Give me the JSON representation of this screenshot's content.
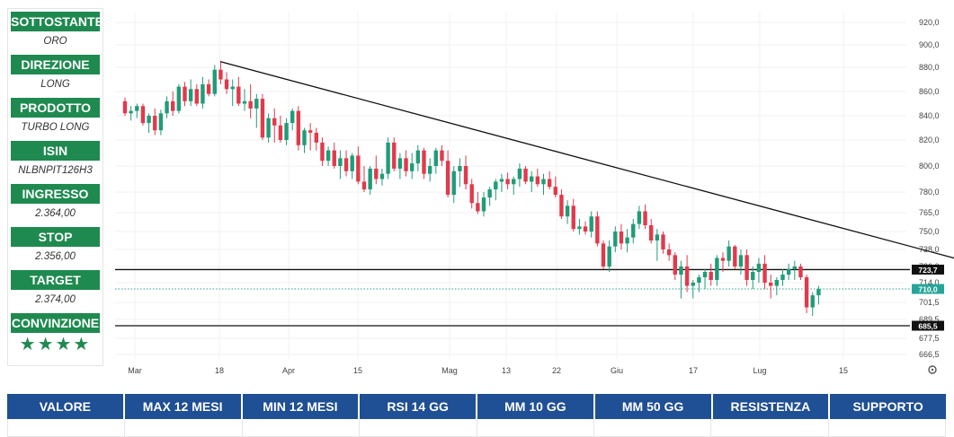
{
  "sidebar": {
    "items": [
      {
        "label": "SOTTOSTANTE",
        "value": "ORO"
      },
      {
        "label": "DIREZIONE",
        "value": "LONG"
      },
      {
        "label": "PRODOTTO",
        "value": "TURBO LONG"
      },
      {
        "label": "ISIN",
        "value": "NLBNPIT126H3"
      },
      {
        "label": "INGRESSO",
        "value": "2.364,00"
      },
      {
        "label": "STOP",
        "value": "2.356,00"
      },
      {
        "label": "TARGET",
        "value": "2.374,00"
      },
      {
        "label": "CONVINZIONE",
        "value": "★★★★"
      }
    ]
  },
  "colors": {
    "up": "#1f9c78",
    "down": "#e03a4c",
    "header_green": "#1f8a50",
    "table_blue": "#1f4f94"
  },
  "table": {
    "headers": [
      "VALORE",
      "MAX 12 MESI",
      "MIN 12 MESI",
      "RSI 14 GG",
      "MM 10 GG",
      "MM 50 GG",
      "RESISTENZA",
      "SUPPORTO"
    ]
  },
  "chart_data": {
    "type": "candlestick",
    "y_ticks": [
      "920,0",
      "900,0",
      "880,0",
      "860,0",
      "840,0",
      "820,0",
      "800,0",
      "780,0",
      "765,0",
      "750,0",
      "738,0",
      "726,0",
      "714,0",
      "701,5",
      "689,5",
      "677,5",
      "666,5"
    ],
    "x_ticks": [
      "Mar",
      "18",
      "Apr",
      "15",
      "Mag",
      "13",
      "22",
      "Giu",
      "17",
      "Lug",
      "15"
    ],
    "levels": [
      {
        "label": "723,7",
        "kind": "resistance"
      },
      {
        "label": "710,0",
        "kind": "last"
      },
      {
        "label": "685,5",
        "kind": "support"
      }
    ],
    "trendline": {
      "from": {
        "index": 16,
        "value": 885
      },
      "to": {
        "index": 156,
        "value": 712
      }
    },
    "ohlc": [
      [
        852,
        855,
        840,
        842
      ],
      [
        842,
        848,
        836,
        844
      ],
      [
        844,
        850,
        838,
        848
      ],
      [
        848,
        850,
        832,
        834
      ],
      [
        834,
        842,
        826,
        840
      ],
      [
        840,
        846,
        824,
        828
      ],
      [
        828,
        845,
        824,
        842
      ],
      [
        842,
        856,
        838,
        852
      ],
      [
        852,
        860,
        840,
        844
      ],
      [
        844,
        866,
        842,
        864
      ],
      [
        864,
        868,
        848,
        852
      ],
      [
        852,
        870,
        848,
        862
      ],
      [
        862,
        866,
        848,
        850
      ],
      [
        850,
        872,
        846,
        866
      ],
      [
        866,
        870,
        856,
        858
      ],
      [
        858,
        882,
        856,
        878
      ],
      [
        878,
        886,
        866,
        870
      ],
      [
        870,
        876,
        858,
        862
      ],
      [
        862,
        870,
        848,
        864
      ],
      [
        864,
        872,
        848,
        850
      ],
      [
        850,
        862,
        844,
        852
      ],
      [
        852,
        866,
        838,
        846
      ],
      [
        846,
        858,
        830,
        854
      ],
      [
        854,
        858,
        820,
        822
      ],
      [
        822,
        842,
        818,
        838
      ],
      [
        838,
        846,
        818,
        832
      ],
      [
        832,
        840,
        818,
        820
      ],
      [
        820,
        838,
        816,
        834
      ],
      [
        834,
        846,
        828,
        844
      ],
      [
        844,
        848,
        812,
        816
      ],
      [
        816,
        830,
        810,
        828
      ],
      [
        828,
        834,
        812,
        826
      ],
      [
        826,
        830,
        812,
        818
      ],
      [
        818,
        822,
        800,
        804
      ],
      [
        804,
        815,
        800,
        812
      ],
      [
        812,
        818,
        798,
        800
      ],
      [
        800,
        812,
        790,
        806
      ],
      [
        806,
        812,
        792,
        796
      ],
      [
        796,
        810,
        790,
        808
      ],
      [
        808,
        815,
        786,
        788
      ],
      [
        788,
        800,
        780,
        782
      ],
      [
        782,
        800,
        778,
        798
      ],
      [
        798,
        808,
        786,
        790
      ],
      [
        790,
        798,
        785,
        794
      ],
      [
        794,
        822,
        790,
        818
      ],
      [
        818,
        822,
        796,
        798
      ],
      [
        798,
        810,
        790,
        806
      ],
      [
        806,
        812,
        792,
        796
      ],
      [
        796,
        810,
        790,
        802
      ],
      [
        802,
        816,
        796,
        812
      ],
      [
        812,
        814,
        790,
        794
      ],
      [
        794,
        806,
        788,
        800
      ],
      [
        800,
        814,
        794,
        812
      ],
      [
        812,
        816,
        800,
        804
      ],
      [
        804,
        812,
        776,
        778
      ],
      [
        778,
        800,
        772,
        796
      ],
      [
        796,
        806,
        784,
        800
      ],
      [
        800,
        808,
        782,
        786
      ],
      [
        786,
        790,
        768,
        772
      ],
      [
        772,
        780,
        764,
        766
      ],
      [
        766,
        780,
        762,
        776
      ],
      [
        776,
        784,
        770,
        782
      ],
      [
        782,
        790,
        774,
        788
      ],
      [
        788,
        794,
        780,
        790
      ],
      [
        790,
        795,
        782,
        786
      ],
      [
        786,
        792,
        778,
        790
      ],
      [
        790,
        802,
        784,
        798
      ],
      [
        798,
        800,
        786,
        788
      ],
      [
        788,
        796,
        780,
        792
      ],
      [
        792,
        798,
        784,
        786
      ],
      [
        786,
        794,
        778,
        790
      ],
      [
        790,
        796,
        782,
        784
      ],
      [
        784,
        792,
        776,
        778
      ],
      [
        778,
        782,
        760,
        762
      ],
      [
        762,
        774,
        756,
        770
      ],
      [
        770,
        775,
        750,
        752
      ],
      [
        752,
        760,
        748,
        754
      ],
      [
        754,
        758,
        748,
        750
      ],
      [
        750,
        766,
        746,
        762
      ],
      [
        762,
        766,
        740,
        742
      ],
      [
        742,
        744,
        724,
        726
      ],
      [
        726,
        744,
        722,
        740
      ],
      [
        740,
        754,
        736,
        750
      ],
      [
        750,
        756,
        738,
        742
      ],
      [
        742,
        752,
        736,
        746
      ],
      [
        746,
        760,
        742,
        756
      ],
      [
        756,
        770,
        752,
        766
      ],
      [
        766,
        771,
        752,
        755
      ],
      [
        755,
        760,
        742,
        744
      ],
      [
        744,
        752,
        730,
        748
      ],
      [
        748,
        750,
        735,
        738
      ],
      [
        738,
        742,
        730,
        734
      ],
      [
        734,
        736,
        716,
        720
      ],
      [
        720,
        730,
        704,
        726
      ],
      [
        726,
        734,
        708,
        712
      ],
      [
        712,
        716,
        704,
        714
      ],
      [
        714,
        720,
        708,
        718
      ],
      [
        718,
        724,
        710,
        722
      ],
      [
        722,
        728,
        712,
        716
      ],
      [
        716,
        734,
        712,
        732
      ],
      [
        732,
        736,
        722,
        730
      ],
      [
        730,
        744,
        726,
        740
      ],
      [
        740,
        741,
        724,
        726
      ],
      [
        726,
        738,
        720,
        734
      ],
      [
        734,
        738,
        712,
        716
      ],
      [
        716,
        726,
        710,
        722
      ],
      [
        722,
        732,
        714,
        728
      ],
      [
        728,
        734,
        710,
        714
      ],
      [
        714,
        720,
        704,
        712
      ],
      [
        712,
        718,
        706,
        716
      ],
      [
        716,
        724,
        712,
        720
      ],
      [
        720,
        728,
        716,
        724
      ],
      [
        724,
        730,
        716,
        726
      ],
      [
        726,
        728,
        716,
        718
      ],
      [
        718,
        720,
        694,
        698
      ],
      [
        698,
        708,
        692,
        706
      ],
      [
        706,
        712,
        700,
        710
      ]
    ]
  }
}
